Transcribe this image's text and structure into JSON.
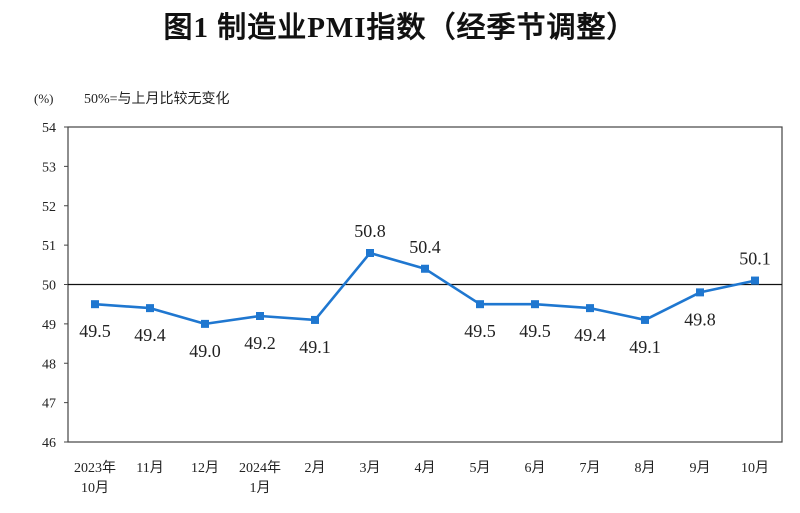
{
  "title": "图1  制造业PMI指数（经季节调整）",
  "unit_label": "(%)",
  "note": "50%=与上月比较无变化",
  "chart_data": {
    "type": "line",
    "categories": [
      [
        "2023年",
        "10月"
      ],
      [
        "11月"
      ],
      [
        "12月"
      ],
      [
        "2024年",
        "1月"
      ],
      [
        "2月"
      ],
      [
        "3月"
      ],
      [
        "4月"
      ],
      [
        "5月"
      ],
      [
        "6月"
      ],
      [
        "7月"
      ],
      [
        "8月"
      ],
      [
        "9月"
      ],
      [
        "10月"
      ]
    ],
    "series": [
      {
        "values": [
          49.5,
          49.4,
          49.0,
          49.2,
          49.1,
          50.8,
          50.4,
          49.5,
          49.5,
          49.4,
          49.1,
          49.8,
          50.1
        ]
      }
    ],
    "data_labels": [
      "49.5",
      "49.4",
      "49.0",
      "49.2",
      "49.1",
      "50.8",
      "50.4",
      "49.5",
      "49.5",
      "49.4",
      "49.1",
      "49.8",
      "50.1"
    ],
    "ylim": [
      46,
      54
    ],
    "yticks": [
      46,
      47,
      48,
      49,
      50,
      51,
      52,
      53,
      54
    ],
    "reference_line": 50,
    "line_color": "#1f77d0",
    "axis_color": "#444444"
  }
}
